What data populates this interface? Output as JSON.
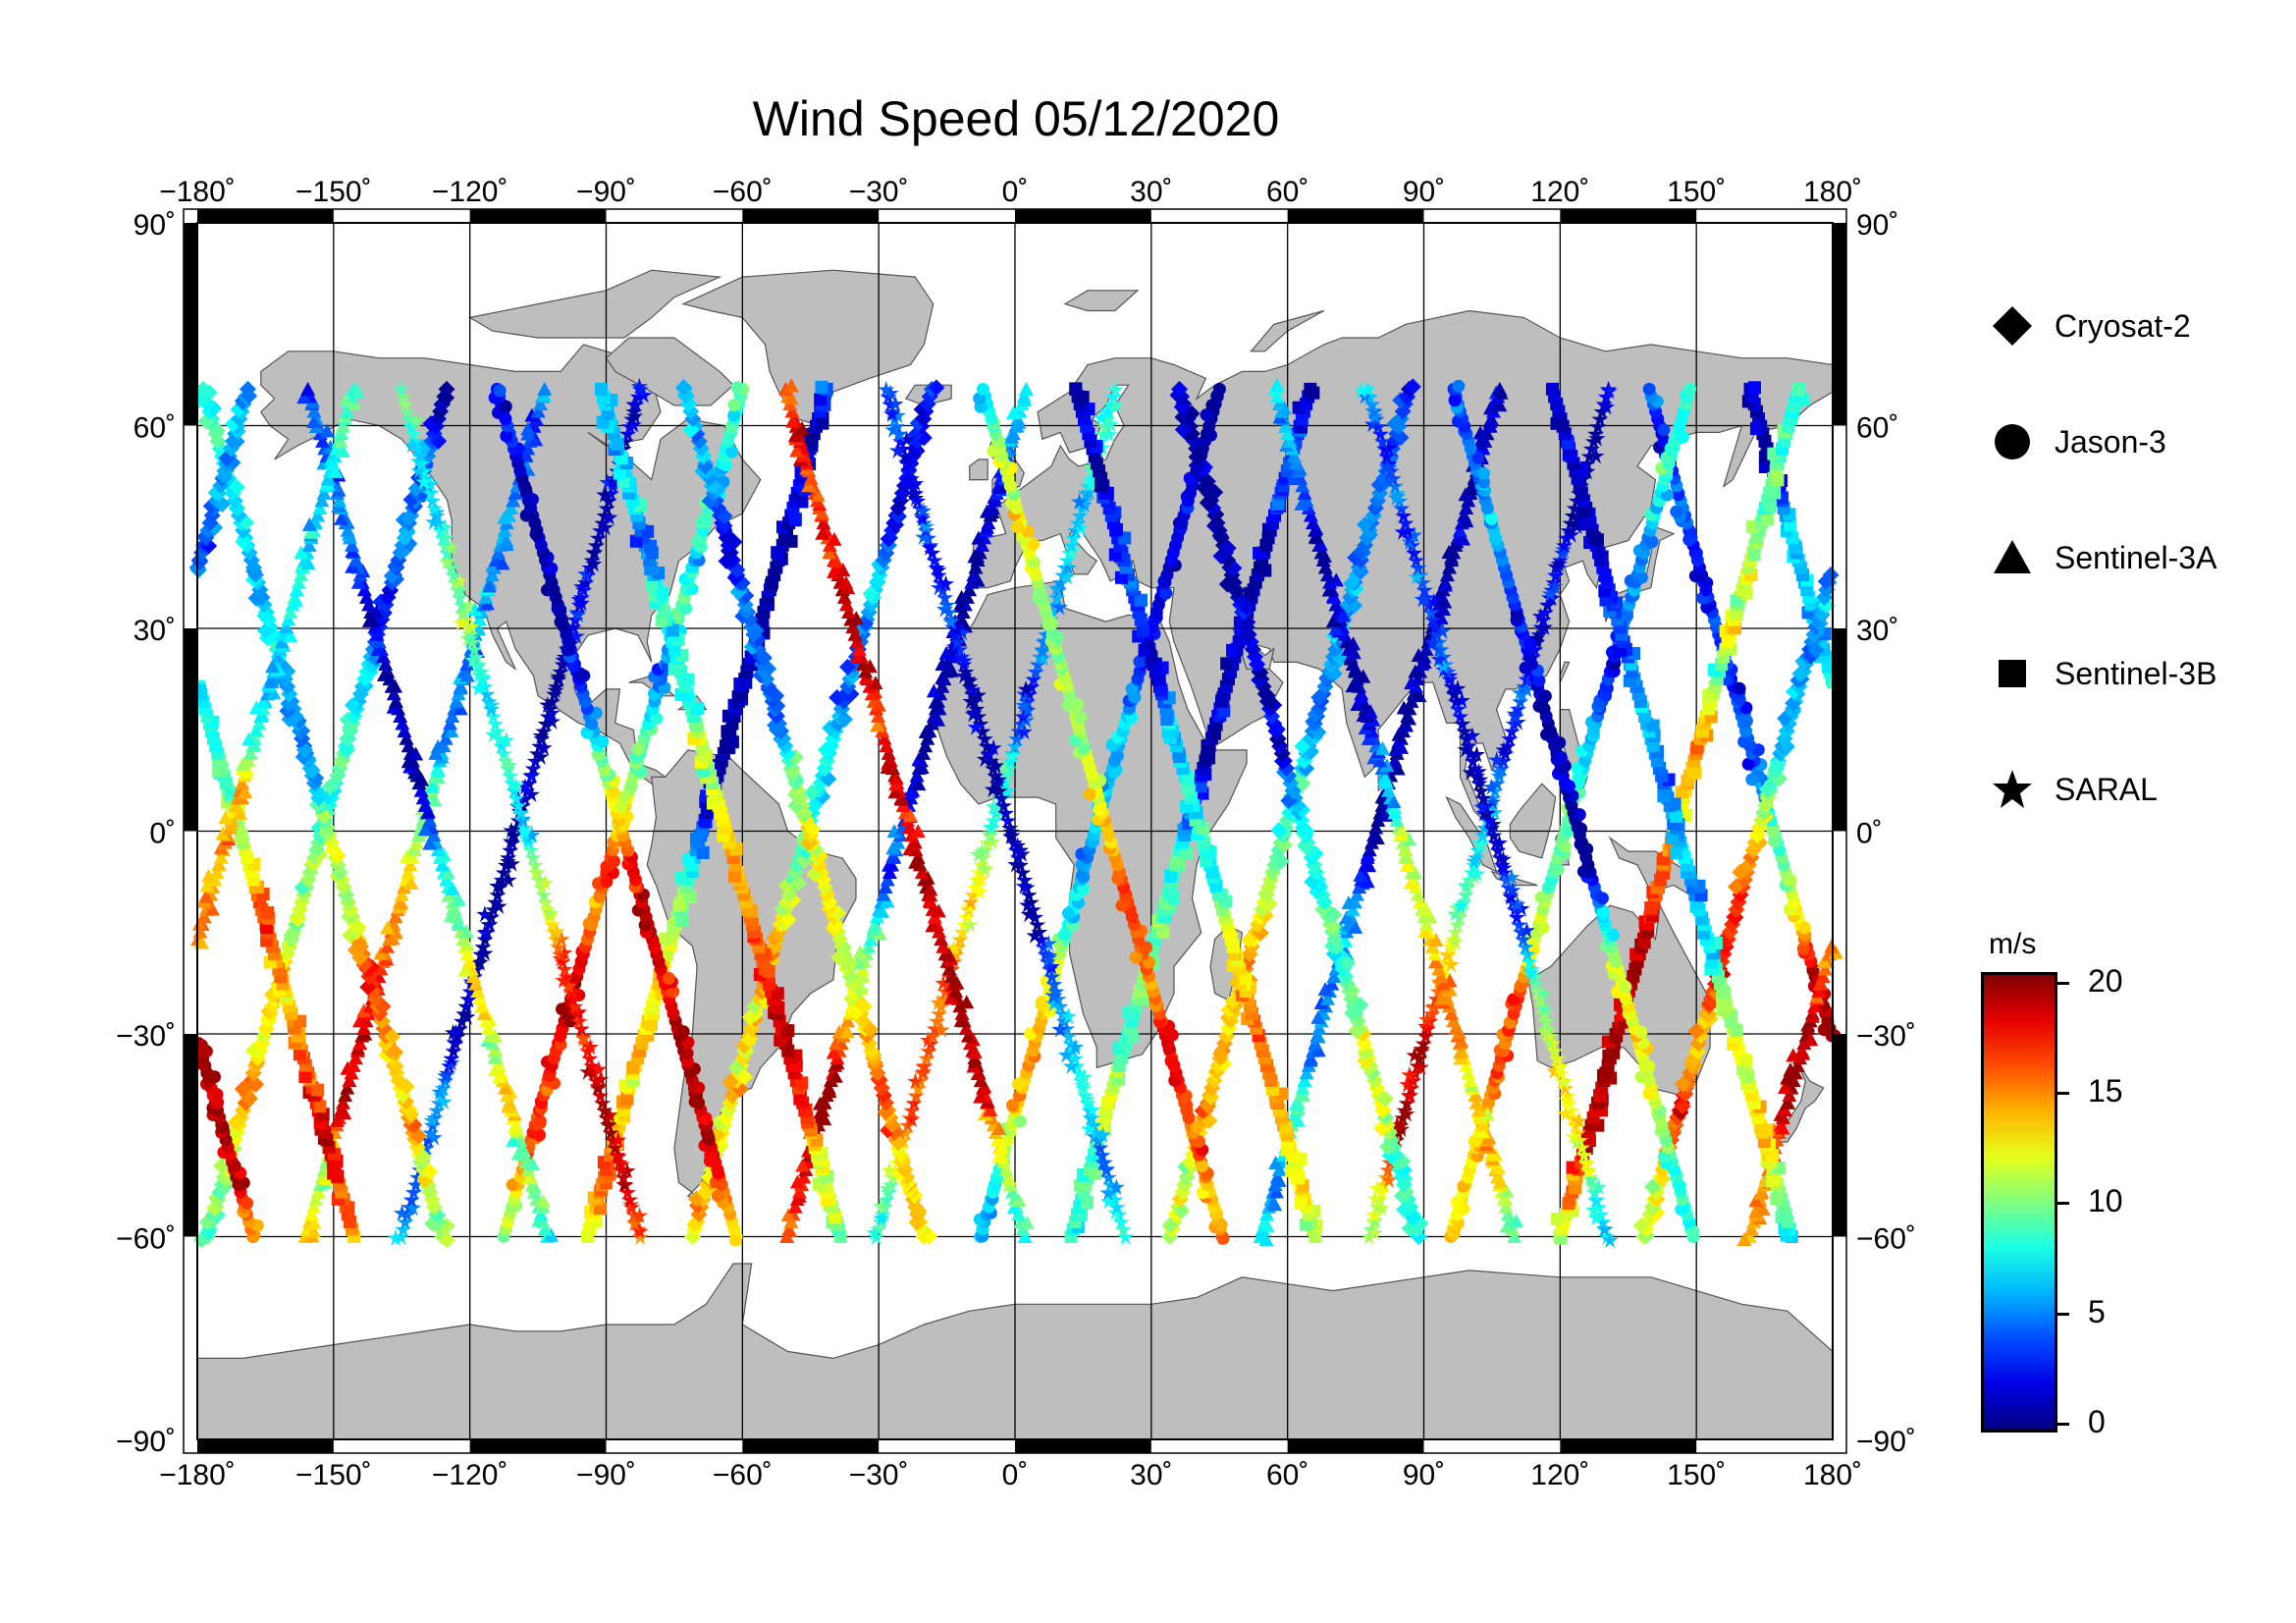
{
  "title": "Wind Speed 05/12/2020",
  "map": {
    "lon_ticks": [
      "−180˚",
      "−150˚",
      "−120˚",
      "−90˚",
      "−60˚",
      "−30˚",
      "0˚",
      "30˚",
      "60˚",
      "90˚",
      "120˚",
      "150˚",
      "180˚"
    ],
    "lat_ticks": [
      "90˚",
      "60˚",
      "30˚",
      "0˚",
      "−30˚",
      "−60˚",
      "−90˚"
    ],
    "lon_range": [
      -180,
      180
    ],
    "lat_range": [
      -90,
      90
    ],
    "land_color": "#bebebe",
    "grid": true,
    "track_latitude_range": [
      -60,
      66
    ]
  },
  "legend": {
    "items": [
      {
        "label": "Cryosat-2",
        "symbol": "diamond"
      },
      {
        "label": "Jason-3",
        "symbol": "circle"
      },
      {
        "label": "Sentinel-3A",
        "symbol": "triangle"
      },
      {
        "label": "Sentinel-3B",
        "symbol": "square"
      },
      {
        "label": "SARAL",
        "symbol": "star"
      }
    ]
  },
  "colorbar": {
    "unit": "m/s",
    "ticks": [
      "20",
      "15",
      "10",
      "5",
      "0"
    ],
    "range": [
      0,
      20.5
    ],
    "colormap": "jet"
  }
}
